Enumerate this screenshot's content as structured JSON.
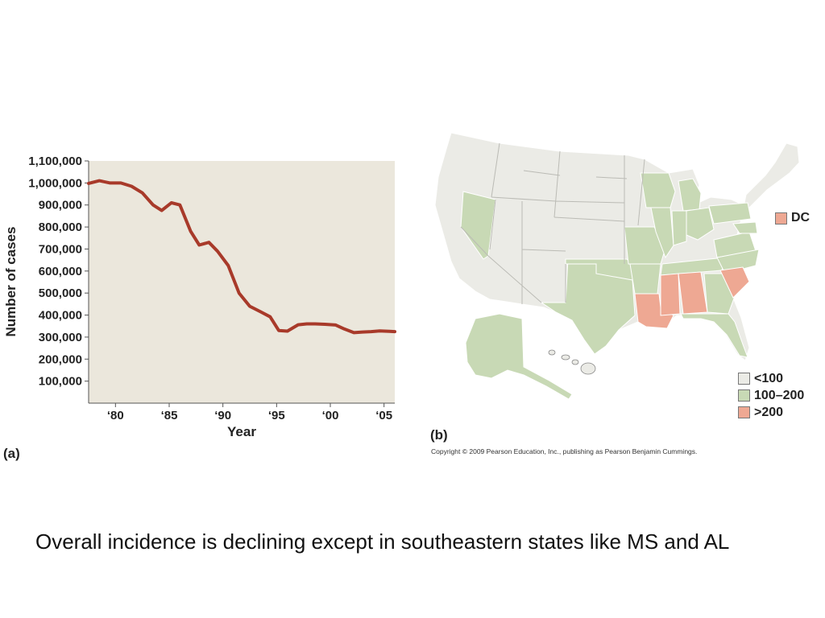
{
  "chart_data": {
    "type": "line",
    "title": "",
    "xlabel": "Year",
    "ylabel": "Number of cases",
    "xlim": [
      1977.5,
      2006
    ],
    "ylim": [
      0,
      1100000
    ],
    "grid": false,
    "x_ticks": [
      {
        "value": 1980,
        "label": "‘80"
      },
      {
        "value": 1985,
        "label": "‘85"
      },
      {
        "value": 1990,
        "label": "‘90"
      },
      {
        "value": 1995,
        "label": "‘95"
      },
      {
        "value": 2000,
        "label": "‘00"
      },
      {
        "value": 2005,
        "label": "‘05"
      }
    ],
    "y_ticks": [
      {
        "value": 100000,
        "label": "100,000"
      },
      {
        "value": 200000,
        "label": "200,000"
      },
      {
        "value": 300000,
        "label": "300,000"
      },
      {
        "value": 400000,
        "label": "400,000"
      },
      {
        "value": 500000,
        "label": "500,000"
      },
      {
        "value": 600000,
        "label": "600,000"
      },
      {
        "value": 700000,
        "label": "700,000"
      },
      {
        "value": 800000,
        "label": "800,000"
      },
      {
        "value": 900000,
        "label": "900,000"
      },
      {
        "value": 1000000,
        "label": "1,000,000"
      },
      {
        "value": 1100000,
        "label": "1,100,000"
      }
    ],
    "series": [
      {
        "color": "#a83a2a",
        "x": [
          1977.5,
          1978.5,
          1979.5,
          1980.5,
          1981.5,
          1982.5,
          1983.5,
          1984.3,
          1985.2,
          1986,
          1987,
          1987.8,
          1988.7,
          1989.5,
          1990.5,
          1991.5,
          1992.5,
          1993.5,
          1994.4,
          1995.2,
          1996,
          1997,
          1997.8,
          1998.6,
          1999.5,
          2000.5,
          2001.3,
          2002.2,
          2003,
          2003.8,
          2004.6,
          2005.5,
          2006
        ],
        "values": [
          998000,
          1010000,
          1000000,
          1000000,
          985000,
          955000,
          900000,
          875000,
          910000,
          900000,
          780000,
          718000,
          730000,
          690000,
          625000,
          500000,
          440000,
          415000,
          392000,
          330000,
          327000,
          356000,
          360000,
          360000,
          358000,
          355000,
          337000,
          320000,
          323000,
          325000,
          328000,
          326000,
          325000
        ]
      }
    ]
  },
  "panel_a_label": "(a)",
  "panel_b_label": "(b)",
  "map": {
    "colors": {
      "low": "#ebebe6",
      "mid": "#c8d9b5",
      "high": "#eea893",
      "border": "#888888"
    },
    "legend": [
      {
        "level": "low",
        "label": "<100"
      },
      {
        "level": "mid",
        "label": "100–200"
      },
      {
        "level": "high",
        "label": ">200"
      }
    ],
    "dc": {
      "level": "high",
      "label": "DC"
    }
  },
  "copyright": "Copyright © 2009 Pearson Education, Inc., publishing as Pearson Benjamin Cummings.",
  "caption": "Overall incidence is declining except in southeastern states like MS and AL"
}
